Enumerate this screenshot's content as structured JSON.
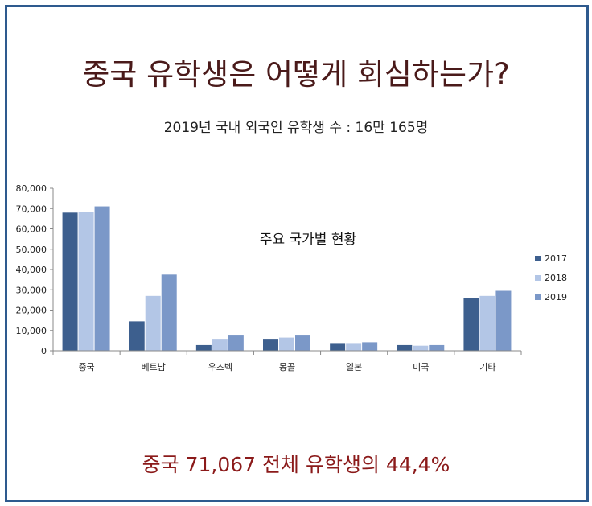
{
  "header": {
    "title": "중국 유학생은 어떻게 회심하는가?",
    "subtitle": "2019년 국내 외국인 유학생 수 : 16만 165명"
  },
  "footer": {
    "text": "중국 71,067 전체 유학생의 44,4%"
  },
  "chart_data": {
    "type": "bar",
    "title": "주요 국가별 현황",
    "xlabel": "",
    "ylabel": "",
    "ylim": [
      0,
      80000
    ],
    "yticks": [
      "0",
      "10,000",
      "20,000",
      "30,000",
      "40,000",
      "50,000",
      "60,000",
      "70,000",
      "80,000"
    ],
    "categories": [
      "중국",
      "베트남",
      "우즈벡",
      "몽골",
      "일본",
      "미국",
      "기타"
    ],
    "series": [
      {
        "name": "2017",
        "color": "#3d5f8e",
        "values": [
          68000,
          14500,
          2800,
          5500,
          3800,
          2800,
          26000
        ]
      },
      {
        "name": "2018",
        "color": "#b3c6e6",
        "values": [
          68500,
          27000,
          5500,
          6500,
          3800,
          2500,
          27000
        ]
      },
      {
        "name": "2019",
        "color": "#7b98c8",
        "values": [
          71067,
          37500,
          7500,
          7500,
          4200,
          2800,
          29500
        ]
      }
    ],
    "grid": false,
    "legend_position": "right"
  }
}
